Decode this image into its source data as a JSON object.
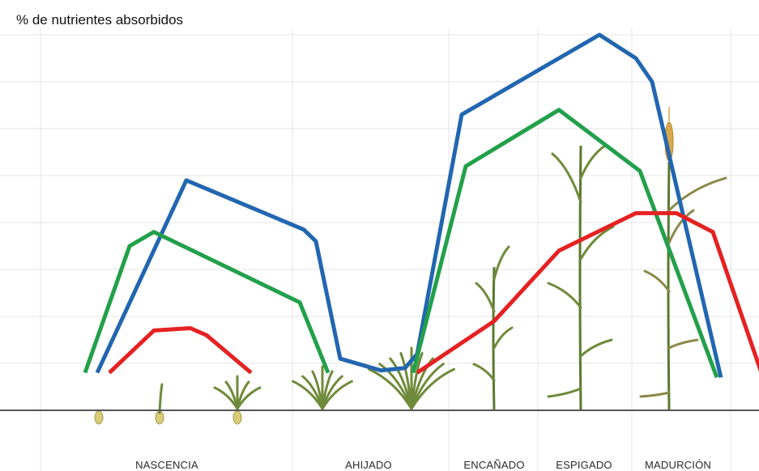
{
  "chart_data": {
    "type": "line",
    "title": "",
    "ylabel": "% de nutrientes absorbidos",
    "xlabel": "",
    "stages": [
      "NASCENCIA",
      "AHIJADO",
      "ENCAÑADO",
      "ESPIGADO",
      "MADURCIÓN"
    ],
    "grid": true,
    "legend": "none",
    "ylim": [
      0,
      8
    ],
    "series": [
      {
        "color": "#2266b0",
        "points": [
          [
            0.7,
            0.8
          ],
          [
            1.8,
            4.9
          ],
          [
            3.25,
            3.85
          ],
          [
            3.4,
            3.6
          ],
          [
            3.7,
            1.1
          ],
          [
            4.2,
            0.85
          ],
          [
            4.5,
            0.9
          ],
          [
            4.65,
            1.2
          ],
          [
            5.2,
            6.3
          ],
          [
            6.9,
            8.0
          ],
          [
            7.35,
            7.5
          ],
          [
            7.55,
            7.0
          ],
          [
            8.4,
            0.7
          ]
        ]
      },
      {
        "color": "#22a04a",
        "points": [
          [
            0.55,
            0.8
          ],
          [
            1.1,
            3.5
          ],
          [
            1.4,
            3.8
          ],
          [
            3.2,
            2.3
          ],
          [
            3.55,
            0.8
          ]
        ]
      },
      {
        "color": "#22a04a",
        "points": [
          [
            4.6,
            0.8
          ],
          [
            5.25,
            5.2
          ],
          [
            6.4,
            6.4
          ],
          [
            7.4,
            5.1
          ],
          [
            8.35,
            0.7
          ]
        ]
      },
      {
        "color": "#e52122",
        "points": [
          [
            0.85,
            0.8
          ],
          [
            1.4,
            1.7
          ],
          [
            1.85,
            1.75
          ],
          [
            2.05,
            1.6
          ],
          [
            2.6,
            0.8
          ]
        ]
      },
      {
        "color": "#e52122",
        "points": [
          [
            4.65,
            0.8
          ],
          [
            5.6,
            1.9
          ],
          [
            6.4,
            3.4
          ],
          [
            7.35,
            4.2
          ],
          [
            7.85,
            4.2
          ],
          [
            8.3,
            3.8
          ],
          [
            8.9,
            0.8
          ]
        ]
      }
    ]
  }
}
